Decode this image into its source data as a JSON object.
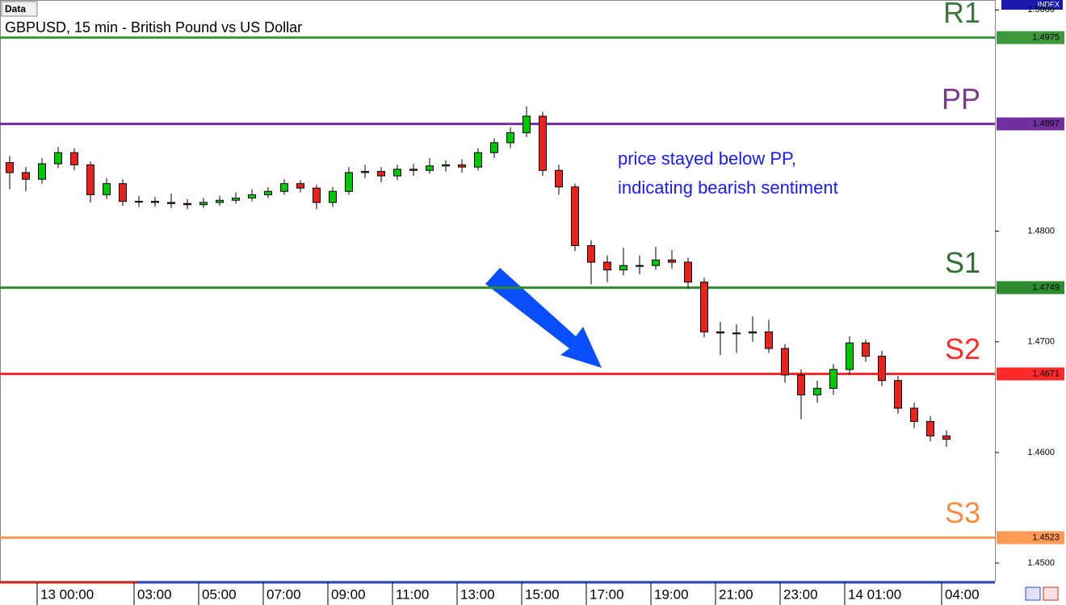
{
  "chart_data": {
    "type": "candlestick",
    "window_label": "Data",
    "title": "GBPUSD, 15 min - British Pound vs US Dollar",
    "axis_badge": "INDEX",
    "annotation": [
      "price stayed below PP,",
      "indicating bearish sentiment"
    ],
    "up_color": "#00c800",
    "down_color": "#e8231d",
    "categories": [
      null,
      null,
      "13 00:00",
      null,
      null,
      null,
      null,
      null,
      "03:00",
      null,
      null,
      null,
      "05:00",
      null,
      null,
      null,
      "07:00",
      null,
      null,
      null,
      "09:00",
      null,
      null,
      null,
      "11:00",
      null,
      null,
      null,
      "13:00",
      null,
      null,
      null,
      "15:00",
      null,
      null,
      null,
      "17:00",
      null,
      null,
      null,
      "19:00",
      null,
      null,
      null,
      "21:00",
      null,
      null,
      null,
      "23:00",
      null,
      null,
      null,
      "14 01:00",
      null,
      null,
      null,
      null,
      null,
      "04:00"
    ],
    "open": [
      1.4862,
      1.4853,
      1.4847,
      1.4861,
      1.4871,
      1.486,
      1.4833,
      1.4843,
      1.4827,
      1.4827,
      1.4826,
      1.4825,
      1.4824,
      1.4826,
      1.4828,
      1.483,
      1.4833,
      1.4836,
      1.4843,
      1.4839,
      1.4826,
      1.4836,
      1.4853,
      1.4854,
      1.485,
      1.4856,
      1.4855,
      1.4859,
      1.486,
      1.4858,
      1.4871,
      1.488,
      1.4889,
      1.4904,
      1.4855,
      1.484,
      1.4787,
      1.4772,
      1.4765,
      1.4769,
      1.4769,
      1.4774,
      1.4772,
      1.4754,
      1.4709,
      1.4708,
      1.4708,
      1.4709,
      1.4694,
      1.467,
      1.4652,
      1.4658,
      1.4675,
      1.4699,
      1.4687,
      1.4665,
      1.464,
      1.4628,
      1.4615
    ],
    "high": [
      1.4868,
      1.4858,
      1.4866,
      1.4876,
      1.4875,
      1.4863,
      1.4848,
      1.4847,
      1.4832,
      1.4831,
      1.4834,
      1.4829,
      1.483,
      1.4832,
      1.4835,
      1.4838,
      1.484,
      1.4847,
      1.4846,
      1.4842,
      1.484,
      1.4858,
      1.486,
      1.4858,
      1.486,
      1.4861,
      1.4866,
      1.4864,
      1.4865,
      1.4875,
      1.4884,
      1.4894,
      1.4913,
      1.4908,
      1.486,
      1.4843,
      1.4792,
      1.4778,
      1.4785,
      1.4778,
      1.4786,
      1.4783,
      1.4776,
      1.4758,
      1.4718,
      1.4716,
      1.4723,
      1.472,
      1.4698,
      1.4675,
      1.4665,
      1.468,
      1.4705,
      1.4702,
      1.4692,
      1.4669,
      1.4645,
      1.4633,
      1.462
    ],
    "low": [
      1.4838,
      1.4836,
      1.4843,
      1.4857,
      1.4855,
      1.4826,
      1.4829,
      1.4823,
      1.4822,
      1.4822,
      1.4821,
      1.482,
      1.4821,
      1.4823,
      1.4825,
      1.4827,
      1.483,
      1.4833,
      1.4835,
      1.482,
      1.4822,
      1.4833,
      1.4848,
      1.4844,
      1.4846,
      1.485,
      1.4852,
      1.4854,
      1.4853,
      1.4855,
      1.4866,
      1.4875,
      1.4885,
      1.485,
      1.4833,
      1.4782,
      1.4752,
      1.4754,
      1.476,
      1.4761,
      1.4765,
      1.4766,
      1.4748,
      1.4704,
      1.4688,
      1.469,
      1.47,
      1.469,
      1.4663,
      1.463,
      1.4645,
      1.4652,
      1.467,
      1.4682,
      1.466,
      1.4635,
      1.4622,
      1.461,
      1.4605
    ],
    "close": [
      1.4853,
      1.4847,
      1.4861,
      1.4871,
      1.486,
      1.4833,
      1.4843,
      1.4827,
      1.4827,
      1.4826,
      1.4825,
      1.4824,
      1.4826,
      1.4828,
      1.483,
      1.4833,
      1.4836,
      1.4843,
      1.4839,
      1.4826,
      1.4836,
      1.4853,
      1.4854,
      1.485,
      1.4856,
      1.4855,
      1.4859,
      1.486,
      1.4858,
      1.4871,
      1.488,
      1.4889,
      1.4904,
      1.4855,
      1.484,
      1.4787,
      1.4772,
      1.4765,
      1.4769,
      1.4769,
      1.4774,
      1.4772,
      1.4754,
      1.4709,
      1.4708,
      1.4708,
      1.4709,
      1.4694,
      1.467,
      1.4652,
      1.4658,
      1.4675,
      1.4699,
      1.4687,
      1.4665,
      1.464,
      1.4628,
      1.4615,
      1.4612
    ],
    "levels": [
      {
        "name": "R1",
        "value": 1.4975,
        "color": "#3c9a3c",
        "text_color": "#3a773a"
      },
      {
        "name": "PP",
        "value": 1.4897,
        "color": "#7030a0",
        "text_color": "#7a3a8c"
      },
      {
        "name": "S1",
        "value": 1.4749,
        "color": "#2e8b2e",
        "text_color": "#2f6f2f"
      },
      {
        "name": "S2",
        "value": 1.4671,
        "color": "#ff2a2a",
        "text_color": "#ff2a2a"
      },
      {
        "name": "S3",
        "value": 1.4523,
        "color": "#ff9a55",
        "text_color": "#ff8a40"
      }
    ],
    "ylim": [
      1.4484,
      1.5009
    ],
    "yticks": [
      {
        "value": 1.5,
        "label": "1.5000"
      },
      {
        "value": 1.48,
        "label": "1.4800"
      },
      {
        "value": 1.47,
        "label": "1.4700"
      },
      {
        "value": 1.46,
        "label": "1.4600"
      },
      {
        "value": 1.45,
        "label": "1.4500"
      }
    ]
  }
}
